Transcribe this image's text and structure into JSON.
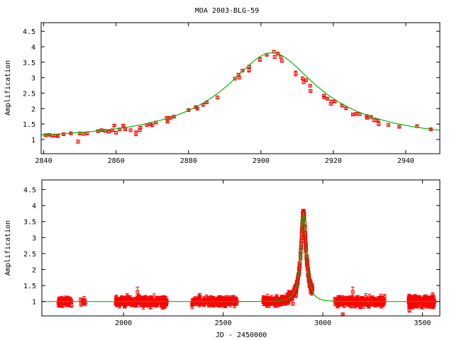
{
  "title": "MOA 2003-BLG-59",
  "colors": {
    "data": "#ff0000",
    "model": "#00bb00",
    "axis": "#000000"
  },
  "model": {
    "type": "paczynski",
    "t0": 2903,
    "u0": 0.27,
    "tE": 45
  },
  "chart_data": [
    {
      "type": "scatter",
      "name": "zoom-panel",
      "title": "MOA 2003-BLG-59",
      "xlabel": "",
      "ylabel": "Amplification",
      "xlim": [
        2839.3,
        2949.4
      ],
      "ylim": [
        0.54,
        4.78
      ],
      "xticks": [
        2840,
        2860,
        2880,
        2900,
        2920,
        2940
      ],
      "xtick_labels": [
        "2840",
        "2860",
        "2880",
        "2900",
        "2920",
        "2940"
      ],
      "yticks": [
        1,
        1.5,
        2,
        2.5,
        3,
        3.5,
        4,
        4.5
      ],
      "ytick_labels": [
        "1",
        "1.5",
        "2",
        "2.5",
        "3",
        "3.5",
        "4",
        "4.5"
      ],
      "grid": false,
      "points": [
        [
          2840.5,
          1.14,
          0.03
        ],
        [
          2841.5,
          1.15,
          0.03
        ],
        [
          2842.5,
          1.12,
          0.03
        ],
        [
          2843.5,
          1.13,
          0.03
        ],
        [
          2844,
          1.11,
          0.04
        ],
        [
          2845.5,
          1.17,
          0.03
        ],
        [
          2847.5,
          1.2,
          0.03
        ],
        [
          2849.5,
          0.93,
          0.05
        ],
        [
          2850,
          1.2,
          0.03
        ],
        [
          2851,
          1.18,
          0.04
        ],
        [
          2852,
          1.2,
          0.03
        ],
        [
          2855,
          1.27,
          0.03
        ],
        [
          2856,
          1.3,
          0.03
        ],
        [
          2857,
          1.28,
          0.03
        ],
        [
          2858,
          1.25,
          0.03
        ],
        [
          2859,
          1.3,
          0.03
        ],
        [
          2859.5,
          1.45,
          0.03
        ],
        [
          2860,
          1.22,
          0.04
        ],
        [
          2861,
          1.33,
          0.03
        ],
        [
          2862,
          1.45,
          0.03
        ],
        [
          2862.5,
          1.33,
          0.03
        ],
        [
          2864,
          1.3,
          0.04
        ],
        [
          2865.5,
          1.2,
          0.08
        ],
        [
          2866.5,
          1.3,
          0.04
        ],
        [
          2866.7,
          1.38,
          0.03
        ],
        [
          2868.5,
          1.47,
          0.03
        ],
        [
          2869.5,
          1.5,
          0.03
        ],
        [
          2870,
          1.46,
          0.04
        ],
        [
          2871,
          1.55,
          0.03
        ],
        [
          2874,
          1.7,
          0.03
        ],
        [
          2874.2,
          1.58,
          0.03
        ],
        [
          2875,
          1.7,
          0.03
        ],
        [
          2876,
          1.74,
          0.03
        ],
        [
          2880,
          1.95,
          0.03
        ],
        [
          2882,
          2.05,
          0.03
        ],
        [
          2882.5,
          2.0,
          0.03
        ],
        [
          2884,
          2.12,
          0.03
        ],
        [
          2885,
          2.2,
          0.03
        ],
        [
          2888,
          2.36,
          0.05
        ],
        [
          2892.8,
          2.97,
          0.04
        ],
        [
          2893.8,
          3.1,
          0.04
        ],
        [
          2894,
          3.0,
          0.04
        ],
        [
          2894.9,
          3.23,
          0.04
        ],
        [
          2896.7,
          3.25,
          0.07
        ],
        [
          2896.8,
          3.36,
          0.04
        ],
        [
          2899.7,
          3.59,
          0.06
        ],
        [
          2901.6,
          3.74,
          0.03
        ],
        [
          2903.6,
          3.84,
          0.04
        ],
        [
          2903.8,
          3.67,
          0.05
        ],
        [
          2904.7,
          3.78,
          0.04
        ],
        [
          2905.5,
          3.67,
          0.04
        ],
        [
          2905.8,
          3.54,
          0.04
        ],
        [
          2909.6,
          3.14,
          0.08
        ],
        [
          2911.5,
          2.98,
          0.04
        ],
        [
          2911.8,
          2.86,
          0.05
        ],
        [
          2912.5,
          2.92,
          0.04
        ],
        [
          2913.6,
          2.74,
          0.04
        ],
        [
          2913.7,
          2.57,
          0.04
        ],
        [
          2917.4,
          2.42,
          0.04
        ],
        [
          2917.5,
          2.36,
          0.04
        ],
        [
          2918.4,
          2.32,
          0.03
        ],
        [
          2919.3,
          2.15,
          0.04
        ],
        [
          2919.5,
          2.23,
          0.04
        ],
        [
          2920.4,
          2.23,
          0.03
        ],
        [
          2922.4,
          2.1,
          0.03
        ],
        [
          2923.5,
          2.01,
          0.03
        ],
        [
          2925.4,
          1.81,
          0.03
        ],
        [
          2926.3,
          1.83,
          0.03
        ],
        [
          2927.3,
          1.82,
          0.04
        ],
        [
          2929.2,
          1.76,
          0.03
        ],
        [
          2929.3,
          1.7,
          0.03
        ],
        [
          2930.4,
          1.73,
          0.03
        ],
        [
          2931.3,
          1.62,
          0.04
        ],
        [
          2932.3,
          1.62,
          0.03
        ],
        [
          2932.5,
          1.51,
          0.06
        ],
        [
          2935.2,
          1.47,
          0.04
        ],
        [
          2938.2,
          1.41,
          0.03
        ],
        [
          2943.1,
          1.43,
          0.03
        ],
        [
          2946.9,
          1.33,
          0.03
        ]
      ]
    },
    {
      "type": "scatter",
      "name": "full-panel",
      "xlabel": "JD - 2450000",
      "ylabel": "Amplification",
      "xlim": [
        1590,
        3587
      ],
      "ylim": [
        0.55,
        4.8
      ],
      "xticks": [
        2000,
        2500,
        3000,
        3500
      ],
      "xtick_labels": [
        "2000",
        "2500",
        "3000",
        "3500"
      ],
      "yticks": [
        1,
        1.5,
        2,
        2.5,
        3,
        3.5,
        4,
        4.5
      ],
      "ytick_labels": [
        "1",
        "1.5",
        "2",
        "2.5",
        "3",
        "3.5",
        "4",
        "4.5"
      ],
      "grid": false,
      "seasons": [
        {
          "start": 1670,
          "end": 1740,
          "count": 70,
          "scatter": 0.05
        },
        {
          "start": 1775,
          "end": 1810,
          "count": 8,
          "scatter": 0.04
        },
        {
          "start": 1960,
          "end": 2220,
          "count": 220,
          "scatter": 0.06
        },
        {
          "start": 2340,
          "end": 2570,
          "count": 170,
          "scatter": 0.06
        },
        {
          "start": 2700,
          "end": 2950,
          "count": 260,
          "scatter": 0.06
        },
        {
          "start": 3060,
          "end": 3310,
          "count": 220,
          "scatter": 0.06
        },
        {
          "start": 3430,
          "end": 3560,
          "count": 180,
          "scatter": 0.08
        }
      ],
      "outliers": [
        [
          2070,
          1.3,
          0.15
        ],
        [
          3150,
          1.3,
          0.15
        ],
        [
          3100,
          0.6,
          0.03
        ]
      ]
    }
  ]
}
